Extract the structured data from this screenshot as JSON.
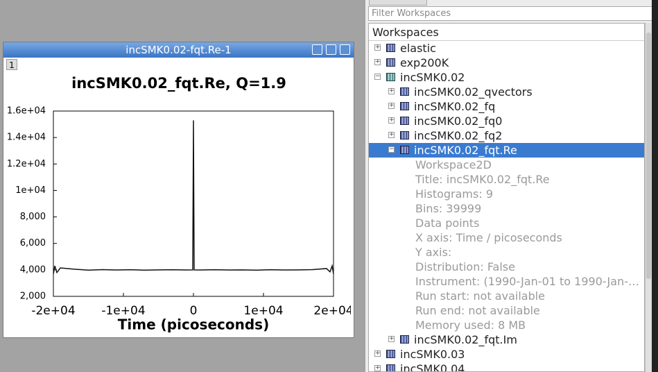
{
  "window": {
    "title": "incSMK0.02-fqt.Re-1",
    "badge": "1"
  },
  "chart_data": {
    "type": "line",
    "title": "incSMK0.02_fqt.Re, Q=1.9",
    "x_label": "Time (picoseconds)",
    "xlim": [
      -20000,
      20000
    ],
    "ylim": [
      2000,
      16000
    ],
    "xticks": [
      {
        "value": -20000,
        "label": "-2e+04"
      },
      {
        "value": -10000,
        "label": "-1e+04"
      },
      0,
      {
        "value": 10000,
        "label": "1e+04"
      },
      {
        "value": 20000,
        "label": "2e+04"
      }
    ],
    "yticks": [
      {
        "value": 2000,
        "label": "2,000"
      },
      {
        "value": 4000,
        "label": "4,000"
      },
      {
        "value": 6000,
        "label": "6,000"
      },
      {
        "value": 8000,
        "label": "8,000"
      },
      {
        "value": 10000,
        "label": "1e+04"
      },
      {
        "value": 12000,
        "label": "1.2e+04"
      },
      {
        "value": 14000,
        "label": "1.4e+04"
      },
      {
        "value": 16000,
        "label": "1.6e+04"
      }
    ],
    "x": [
      -20000,
      -19800,
      -19500,
      -19000,
      -17000,
      -15000,
      -13000,
      -11000,
      -9000,
      -7000,
      -5000,
      -3000,
      -1000,
      -100,
      0,
      100,
      1000,
      3000,
      5000,
      7000,
      9000,
      11000,
      13000,
      15000,
      17000,
      19000,
      19500,
      19800,
      20000
    ],
    "series": [
      {
        "color": "#111111",
        "values": [
          3700,
          4300,
          3800,
          4150,
          4050,
          3980,
          4020,
          3990,
          4010,
          3980,
          4000,
          4010,
          3990,
          4000,
          15300,
          4000,
          3990,
          4010,
          3990,
          4000,
          3980,
          4010,
          3990,
          4000,
          4020,
          4100,
          3850,
          4300,
          3700
        ]
      }
    ]
  },
  "filter_placeholder": "Filter Workspaces",
  "tree": {
    "header": "Workspaces",
    "items": [
      {
        "label": "elastic"
      },
      {
        "label": "exp200K"
      },
      {
        "label": "incSMK0.02",
        "children": [
          {
            "label": "incSMK0.02_qvectors"
          },
          {
            "label": "incSMK0.02_fq"
          },
          {
            "label": "incSMK0.02_fq0"
          },
          {
            "label": "incSMK0.02_fq2"
          },
          {
            "label": "incSMK0.02_fqt.Re",
            "details": [
              "Workspace2D",
              "Title: incSMK0.02_fqt.Re",
              "Histograms: 9",
              "Bins: 39999",
              "Data points",
              "X axis: Time / picoseconds",
              "Y axis:",
              "Distribution: False",
              "Instrument:  (1990-Jan-01 to 1990-Jan-…",
              "Run start: not available",
              "Run end:  not available",
              "Memory used: 8 MB"
            ]
          },
          {
            "label": "incSMK0.02_fqt.Im"
          }
        ]
      },
      {
        "label": "incSMK0.03"
      },
      {
        "label": "incSMK0.04"
      }
    ]
  }
}
